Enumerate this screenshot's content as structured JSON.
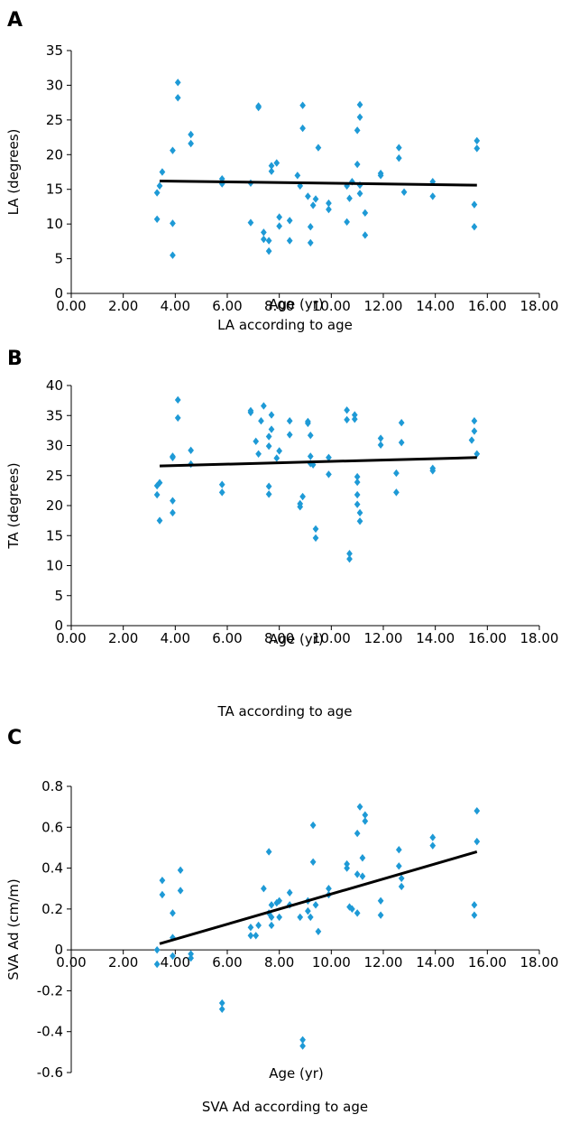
{
  "chart_data": [
    {
      "panel": "A",
      "type": "scatter",
      "caption": "LA according to age",
      "xlabel": "Age (yr)",
      "ylabel": "LA (degrees)",
      "xlim": [
        0,
        18
      ],
      "ylim": [
        0,
        35
      ],
      "x_ticks": [
        "0.00",
        "2.00",
        "4.00",
        "6.00",
        "8.00",
        "10.00",
        "12.00",
        "14.00",
        "16.00",
        "18.00"
      ],
      "y_ticks": [
        "0",
        "5",
        "10",
        "15",
        "20",
        "25",
        "30",
        "35"
      ],
      "marker_color": "#1e9ad6",
      "trend_line": [
        [
          3.4,
          16.2
        ],
        [
          15.6,
          15.6
        ]
      ],
      "points": [
        [
          3.3,
          10.7
        ],
        [
          3.3,
          14.5
        ],
        [
          3.4,
          15.5
        ],
        [
          3.5,
          17.5
        ],
        [
          3.9,
          20.6
        ],
        [
          3.9,
          10.1
        ],
        [
          3.9,
          5.5
        ],
        [
          4.1,
          30.4
        ],
        [
          4.1,
          28.2
        ],
        [
          4.6,
          22.9
        ],
        [
          4.6,
          21.6
        ],
        [
          5.8,
          16.5
        ],
        [
          5.8,
          15.8
        ],
        [
          6.9,
          15.9
        ],
        [
          6.9,
          10.2
        ],
        [
          7.2,
          27.0
        ],
        [
          7.2,
          26.8
        ],
        [
          7.4,
          8.8
        ],
        [
          7.4,
          7.8
        ],
        [
          7.6,
          7.6
        ],
        [
          7.6,
          6.1
        ],
        [
          7.7,
          18.4
        ],
        [
          7.7,
          17.6
        ],
        [
          7.9,
          18.8
        ],
        [
          8.0,
          11.0
        ],
        [
          8.0,
          9.7
        ],
        [
          8.4,
          10.5
        ],
        [
          8.4,
          7.6
        ],
        [
          8.7,
          17.0
        ],
        [
          8.8,
          15.5
        ],
        [
          8.9,
          27.1
        ],
        [
          8.9,
          23.8
        ],
        [
          9.1,
          14.0
        ],
        [
          9.2,
          9.6
        ],
        [
          9.2,
          7.3
        ],
        [
          9.3,
          12.7
        ],
        [
          9.4,
          13.6
        ],
        [
          9.5,
          21.0
        ],
        [
          9.9,
          13.0
        ],
        [
          9.9,
          12.1
        ],
        [
          10.6,
          15.5
        ],
        [
          10.6,
          10.3
        ],
        [
          10.7,
          13.7
        ],
        [
          10.8,
          16.1
        ],
        [
          11.0,
          18.6
        ],
        [
          11.0,
          23.5
        ],
        [
          11.1,
          27.2
        ],
        [
          11.1,
          25.4
        ],
        [
          11.1,
          15.6
        ],
        [
          11.1,
          14.4
        ],
        [
          11.3,
          11.6
        ],
        [
          11.3,
          8.4
        ],
        [
          11.9,
          17.3
        ],
        [
          11.9,
          17.0
        ],
        [
          12.6,
          21.0
        ],
        [
          12.6,
          19.5
        ],
        [
          12.8,
          14.6
        ],
        [
          13.9,
          16.1
        ],
        [
          13.9,
          14.0
        ],
        [
          15.5,
          12.8
        ],
        [
          15.5,
          9.6
        ],
        [
          15.6,
          22.0
        ],
        [
          15.6,
          20.9
        ]
      ]
    },
    {
      "panel": "B",
      "type": "scatter",
      "caption": "TA according to age",
      "xlabel": "Age (yr)",
      "ylabel": "TA (degrees)",
      "xlim": [
        0,
        18
      ],
      "ylim": [
        0,
        40
      ],
      "x_ticks": [
        "0.00",
        "2.00",
        "4.00",
        "6.00",
        "8.00",
        "10.00",
        "12.00",
        "14.00",
        "16.00",
        "18.00"
      ],
      "y_ticks": [
        "0",
        "5",
        "10",
        "15",
        "20",
        "25",
        "30",
        "35",
        "40"
      ],
      "marker_color": "#1e9ad6",
      "trend_line": [
        [
          3.4,
          26.6
        ],
        [
          15.6,
          28.0
        ]
      ],
      "points": [
        [
          3.3,
          23.3
        ],
        [
          3.3,
          21.8
        ],
        [
          3.4,
          23.8
        ],
        [
          3.4,
          17.5
        ],
        [
          3.9,
          28.0
        ],
        [
          3.9,
          28.2
        ],
        [
          3.9,
          20.8
        ],
        [
          3.9,
          18.8
        ],
        [
          4.1,
          37.6
        ],
        [
          4.1,
          34.6
        ],
        [
          4.6,
          29.2
        ],
        [
          4.6,
          26.9
        ],
        [
          5.8,
          23.5
        ],
        [
          5.8,
          22.2
        ],
        [
          6.9,
          35.5
        ],
        [
          6.9,
          35.8
        ],
        [
          7.1,
          30.7
        ],
        [
          7.2,
          28.6
        ],
        [
          7.3,
          34.1
        ],
        [
          7.4,
          36.6
        ],
        [
          7.6,
          31.5
        ],
        [
          7.6,
          29.9
        ],
        [
          7.6,
          23.2
        ],
        [
          7.6,
          21.9
        ],
        [
          7.7,
          35.1
        ],
        [
          7.7,
          32.7
        ],
        [
          7.9,
          27.9
        ],
        [
          8.0,
          29.1
        ],
        [
          8.4,
          34.1
        ],
        [
          8.4,
          31.8
        ],
        [
          8.8,
          19.8
        ],
        [
          8.8,
          20.3
        ],
        [
          8.9,
          21.5
        ],
        [
          9.1,
          33.7
        ],
        [
          9.1,
          34.0
        ],
        [
          9.2,
          28.2
        ],
        [
          9.2,
          27.0
        ],
        [
          9.2,
          31.7
        ],
        [
          9.3,
          26.8
        ],
        [
          9.4,
          16.1
        ],
        [
          9.4,
          14.6
        ],
        [
          9.9,
          28.0
        ],
        [
          9.9,
          25.2
        ],
        [
          10.6,
          35.9
        ],
        [
          10.6,
          34.3
        ],
        [
          10.7,
          12.0
        ],
        [
          10.7,
          11.1
        ],
        [
          10.9,
          35.1
        ],
        [
          10.9,
          34.4
        ],
        [
          11.0,
          24.8
        ],
        [
          11.0,
          23.9
        ],
        [
          11.0,
          21.8
        ],
        [
          11.0,
          20.2
        ],
        [
          11.1,
          18.8
        ],
        [
          11.1,
          17.4
        ],
        [
          11.9,
          31.2
        ],
        [
          11.9,
          30.1
        ],
        [
          12.5,
          25.4
        ],
        [
          12.5,
          22.2
        ],
        [
          12.7,
          33.8
        ],
        [
          12.7,
          30.5
        ],
        [
          13.9,
          26.2
        ],
        [
          13.9,
          25.8
        ],
        [
          15.4,
          30.9
        ],
        [
          15.5,
          34.1
        ],
        [
          15.5,
          32.4
        ],
        [
          15.6,
          28.6
        ]
      ]
    },
    {
      "panel": "C",
      "type": "scatter",
      "caption": "SVA Ad according to age",
      "xlabel": "Age (yr)",
      "ylabel": "SVA Ad (cm/m)",
      "xlim": [
        0,
        18
      ],
      "ylim": [
        -0.6,
        0.8
      ],
      "x_ticks": [
        "0.00",
        "2.00",
        "4.00",
        "6.00",
        "8.00",
        "10.00",
        "12.00",
        "14.00",
        "16.00",
        "18.00"
      ],
      "y_ticks": [
        "-0.6",
        "-0.4",
        "-0.2",
        "0",
        "0.2",
        "0.4",
        "0.6",
        "0.8"
      ],
      "marker_color": "#1e9ad6",
      "trend_line": [
        [
          3.4,
          0.03
        ],
        [
          15.6,
          0.48
        ]
      ],
      "points": [
        [
          3.3,
          0.0
        ],
        [
          3.3,
          -0.07
        ],
        [
          3.5,
          0.34
        ],
        [
          3.5,
          0.27
        ],
        [
          3.9,
          0.18
        ],
        [
          3.9,
          0.06
        ],
        [
          3.9,
          -0.03
        ],
        [
          4.2,
          0.39
        ],
        [
          4.2,
          0.29
        ],
        [
          4.6,
          -0.02
        ],
        [
          4.6,
          -0.04
        ],
        [
          5.8,
          -0.26
        ],
        [
          5.8,
          -0.29
        ],
        [
          6.9,
          0.11
        ],
        [
          6.9,
          0.07
        ],
        [
          7.1,
          0.07
        ],
        [
          7.2,
          0.12
        ],
        [
          7.4,
          0.3
        ],
        [
          7.6,
          0.48
        ],
        [
          7.6,
          0.18
        ],
        [
          7.7,
          0.22
        ],
        [
          7.7,
          0.16
        ],
        [
          7.7,
          0.12
        ],
        [
          7.9,
          0.23
        ],
        [
          8.0,
          0.24
        ],
        [
          8.0,
          0.16
        ],
        [
          8.4,
          0.28
        ],
        [
          8.4,
          0.22
        ],
        [
          8.8,
          0.16
        ],
        [
          8.9,
          -0.44
        ],
        [
          8.9,
          -0.47
        ],
        [
          9.1,
          0.24
        ],
        [
          9.1,
          0.19
        ],
        [
          9.2,
          0.16
        ],
        [
          9.3,
          0.61
        ],
        [
          9.3,
          0.43
        ],
        [
          9.4,
          0.22
        ],
        [
          9.5,
          0.09
        ],
        [
          9.9,
          0.3
        ],
        [
          9.9,
          0.27
        ],
        [
          10.6,
          0.42
        ],
        [
          10.6,
          0.4
        ],
        [
          10.7,
          0.21
        ],
        [
          10.8,
          0.2
        ],
        [
          11.0,
          0.37
        ],
        [
          11.0,
          0.18
        ],
        [
          11.0,
          0.57
        ],
        [
          11.1,
          0.7
        ],
        [
          11.2,
          0.45
        ],
        [
          11.2,
          0.36
        ],
        [
          11.3,
          0.66
        ],
        [
          11.3,
          0.63
        ],
        [
          11.9,
          0.24
        ],
        [
          11.9,
          0.17
        ],
        [
          12.6,
          0.49
        ],
        [
          12.6,
          0.41
        ],
        [
          12.7,
          0.35
        ],
        [
          12.7,
          0.31
        ],
        [
          13.9,
          0.55
        ],
        [
          13.9,
          0.51
        ],
        [
          15.5,
          0.22
        ],
        [
          15.5,
          0.17
        ],
        [
          15.6,
          0.68
        ],
        [
          15.6,
          0.53
        ]
      ]
    }
  ]
}
